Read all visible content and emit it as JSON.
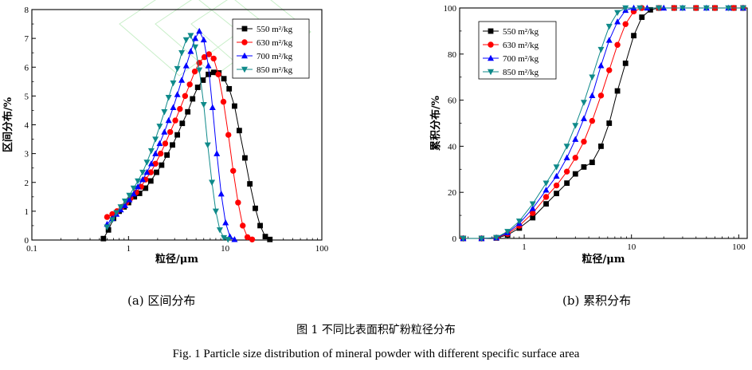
{
  "figure": {
    "caption_zh": "图 1  不同比表面积矿粉粒径分布",
    "caption_en": "Fig. 1 Particle size distribution of mineral powder with different specific surface area"
  },
  "chart_data": [
    {
      "id": "a",
      "type": "line",
      "caption": "(a)  区间分布",
      "xlabel": "粒径/μm",
      "ylabel": "区间分布/%",
      "xscale": "log",
      "xlim": [
        0.1,
        100
      ],
      "ylim": [
        0,
        8
      ],
      "xticks": [
        0.1,
        1,
        10,
        100
      ],
      "xtick_labels": [
        "0.1",
        "1",
        "10",
        "100"
      ],
      "yticks": [
        0,
        1,
        2,
        3,
        4,
        5,
        6,
        7,
        8
      ],
      "ytick_labels": [
        "0",
        "1",
        "2",
        "3",
        "4",
        "5",
        "6",
        "7",
        "8"
      ],
      "grid": false,
      "legend_position": "top-right",
      "series": [
        {
          "name": "550 m²/kg",
          "marker": "square",
          "color": "#000000",
          "peak_x": 7.8,
          "peak_y": 5.85,
          "left_sigma": 0.41,
          "right_sigma": 0.2,
          "onset_x": 0.55,
          "end_x": 27,
          "points": [
            [
              0.55,
              0.05
            ],
            [
              0.62,
              0.35
            ],
            [
              0.7,
              0.75
            ],
            [
              0.8,
              1.0
            ],
            [
              0.9,
              1.15
            ],
            [
              1.0,
              1.3
            ],
            [
              1.15,
              1.5
            ],
            [
              1.3,
              1.62
            ],
            [
              1.5,
              1.8
            ],
            [
              1.7,
              2.05
            ],
            [
              1.95,
              2.35
            ],
            [
              2.2,
              2.6
            ],
            [
              2.5,
              2.95
            ],
            [
              2.85,
              3.3
            ],
            [
              3.2,
              3.65
            ],
            [
              3.6,
              4.05
            ],
            [
              4.1,
              4.45
            ],
            [
              4.6,
              4.9
            ],
            [
              5.2,
              5.3
            ],
            [
              5.9,
              5.55
            ],
            [
              6.7,
              5.75
            ],
            [
              7.6,
              5.82
            ],
            [
              8.6,
              5.8
            ],
            [
              9.7,
              5.6
            ],
            [
              11,
              5.25
            ],
            [
              12.5,
              4.65
            ],
            [
              14,
              3.8
            ],
            [
              16,
              2.85
            ],
            [
              18,
              1.95
            ],
            [
              20.5,
              1.1
            ],
            [
              23,
              0.5
            ],
            [
              26,
              0.12
            ],
            [
              29,
              0.02
            ]
          ]
        },
        {
          "name": "630 m²/kg",
          "marker": "circle",
          "color": "#ff0000",
          "peak_x": 6.6,
          "peak_y": 6.45,
          "left_sigma": 0.42,
          "right_sigma": 0.17,
          "onset_x": 0.55,
          "end_x": 20,
          "points": [
            [
              0.6,
              0.8
            ],
            [
              0.68,
              0.9
            ],
            [
              0.76,
              1.0
            ],
            [
              0.85,
              1.15
            ],
            [
              0.95,
              1.3
            ],
            [
              1.05,
              1.45
            ],
            [
              1.2,
              1.65
            ],
            [
              1.35,
              1.85
            ],
            [
              1.5,
              2.1
            ],
            [
              1.7,
              2.35
            ],
            [
              1.9,
              2.65
            ],
            [
              2.15,
              3.0
            ],
            [
              2.4,
              3.35
            ],
            [
              2.7,
              3.75
            ],
            [
              3.05,
              4.15
            ],
            [
              3.4,
              4.55
            ],
            [
              3.85,
              5.0
            ],
            [
              4.3,
              5.4
            ],
            [
              4.85,
              5.85
            ],
            [
              5.4,
              6.15
            ],
            [
              6.1,
              6.35
            ],
            [
              6.8,
              6.45
            ],
            [
              7.6,
              6.3
            ],
            [
              8.5,
              5.75
            ],
            [
              9.6,
              4.8
            ],
            [
              10.8,
              3.65
            ],
            [
              12.1,
              2.4
            ],
            [
              13.6,
              1.3
            ],
            [
              15.2,
              0.5
            ],
            [
              17,
              0.1
            ],
            [
              19,
              0.02
            ]
          ]
        },
        {
          "name": "700 m²/kg",
          "marker": "triangle-up",
          "color": "#0000ff",
          "peak_x": 5.5,
          "peak_y": 7.3,
          "left_sigma": 0.44,
          "right_sigma": 0.13,
          "onset_x": 0.55,
          "end_x": 14,
          "points": [
            [
              0.6,
              0.55
            ],
            [
              0.68,
              0.75
            ],
            [
              0.75,
              0.9
            ],
            [
              0.83,
              1.05
            ],
            [
              0.92,
              1.2
            ],
            [
              1.02,
              1.4
            ],
            [
              1.13,
              1.6
            ],
            [
              1.25,
              1.85
            ],
            [
              1.4,
              2.1
            ],
            [
              1.55,
              2.35
            ],
            [
              1.72,
              2.65
            ],
            [
              1.9,
              3.0
            ],
            [
              2.1,
              3.35
            ],
            [
              2.35,
              3.75
            ],
            [
              2.6,
              4.15
            ],
            [
              2.9,
              4.6
            ],
            [
              3.2,
              5.05
            ],
            [
              3.55,
              5.55
            ],
            [
              3.95,
              6.05
            ],
            [
              4.4,
              6.55
            ],
            [
              4.9,
              7.0
            ],
            [
              5.4,
              7.25
            ],
            [
              6.0,
              6.95
            ],
            [
              6.7,
              6.05
            ],
            [
              7.4,
              4.6
            ],
            [
              8.2,
              3.0
            ],
            [
              9.1,
              1.6
            ],
            [
              10.1,
              0.6
            ],
            [
              11.2,
              0.12
            ],
            [
              12.5,
              0.02
            ]
          ]
        },
        {
          "name": "850 m²/kg",
          "marker": "triangle-down",
          "color": "#0f8a8a",
          "peak_x": 4.6,
          "peak_y": 7.1,
          "left_sigma": 0.42,
          "right_sigma": 0.12,
          "onset_x": 0.55,
          "end_x": 12,
          "points": [
            [
              0.6,
              0.45
            ],
            [
              0.68,
              0.7
            ],
            [
              0.75,
              0.95
            ],
            [
              0.83,
              1.15
            ],
            [
              0.92,
              1.35
            ],
            [
              1.02,
              1.55
            ],
            [
              1.13,
              1.8
            ],
            [
              1.25,
              2.05
            ],
            [
              1.4,
              2.35
            ],
            [
              1.55,
              2.7
            ],
            [
              1.72,
              3.1
            ],
            [
              1.9,
              3.5
            ],
            [
              2.1,
              3.95
            ],
            [
              2.35,
              4.45
            ],
            [
              2.6,
              4.95
            ],
            [
              2.9,
              5.45
            ],
            [
              3.2,
              5.95
            ],
            [
              3.55,
              6.5
            ],
            [
              3.95,
              6.95
            ],
            [
              4.4,
              7.1
            ],
            [
              4.9,
              6.7
            ],
            [
              5.4,
              5.9
            ],
            [
              6.0,
              4.7
            ],
            [
              6.6,
              3.3
            ],
            [
              7.3,
              2.0
            ],
            [
              8.0,
              1.0
            ],
            [
              8.8,
              0.35
            ],
            [
              9.7,
              0.08
            ],
            [
              10.7,
              0.02
            ]
          ]
        }
      ]
    },
    {
      "id": "b",
      "type": "line",
      "caption": "(b)  累积分布",
      "xlabel": "粒径/μm",
      "ylabel": "累积分布/%",
      "xscale": "log",
      "xlim": [
        0.25,
        120
      ],
      "ylim": [
        0,
        100
      ],
      "xticks": [
        1,
        10,
        100
      ],
      "xtick_labels": [
        "1",
        "10",
        "100"
      ],
      "yticks": [
        0,
        20,
        40,
        60,
        80,
        100
      ],
      "ytick_labels": [
        "0",
        "20",
        "40",
        "60",
        "80",
        "100"
      ],
      "grid": false,
      "legend_position": "top-left",
      "series": [
        {
          "name": "550 m²/kg",
          "marker": "square",
          "color": "#000000",
          "points": [
            [
              0.27,
              0
            ],
            [
              0.4,
              0
            ],
            [
              0.55,
              0.2
            ],
            [
              0.7,
              1.5
            ],
            [
              0.9,
              4.5
            ],
            [
              1.2,
              9
            ],
            [
              1.6,
              15
            ],
            [
              2.0,
              19.5
            ],
            [
              2.5,
              24
            ],
            [
              3.0,
              28
            ],
            [
              3.6,
              31
            ],
            [
              4.3,
              33
            ],
            [
              5.2,
              40
            ],
            [
              6.2,
              50
            ],
            [
              7.4,
              64
            ],
            [
              8.8,
              76
            ],
            [
              10.5,
              88
            ],
            [
              12.5,
              96
            ],
            [
              15,
              99.2
            ],
            [
              18,
              100
            ],
            [
              25,
              100
            ],
            [
              40,
              100
            ],
            [
              60,
              100
            ],
            [
              90,
              100
            ],
            [
              110,
              100
            ]
          ]
        },
        {
          "name": "630 m²/kg",
          "marker": "circle",
          "color": "#ff0000",
          "points": [
            [
              0.27,
              0
            ],
            [
              0.4,
              0
            ],
            [
              0.55,
              0.3
            ],
            [
              0.7,
              2.0
            ],
            [
              0.9,
              5.5
            ],
            [
              1.2,
              11
            ],
            [
              1.6,
              18
            ],
            [
              2.0,
              23
            ],
            [
              2.5,
              29
            ],
            [
              3.0,
              35
            ],
            [
              3.6,
              42
            ],
            [
              4.3,
              51
            ],
            [
              5.2,
              62
            ],
            [
              6.2,
              73
            ],
            [
              7.4,
              84
            ],
            [
              8.8,
              93
            ],
            [
              10.5,
              98.5
            ],
            [
              12.5,
              100
            ],
            [
              18,
              100
            ],
            [
              25,
              100
            ],
            [
              40,
              100
            ],
            [
              60,
              100
            ],
            [
              90,
              100
            ],
            [
              110,
              100
            ]
          ]
        },
        {
          "name": "700 m²/kg",
          "marker": "triangle-up",
          "color": "#0000ff",
          "points": [
            [
              0.27,
              0
            ],
            [
              0.4,
              0
            ],
            [
              0.55,
              0.3
            ],
            [
              0.7,
              2.5
            ],
            [
              0.9,
              6.5
            ],
            [
              1.2,
              13
            ],
            [
              1.6,
              21
            ],
            [
              2.0,
              27
            ],
            [
              2.5,
              35
            ],
            [
              3.0,
              43
            ],
            [
              3.6,
              52
            ],
            [
              4.3,
              62
            ],
            [
              5.2,
              75
            ],
            [
              6.2,
              86
            ],
            [
              7.4,
              94
            ],
            [
              8.8,
              99
            ],
            [
              10.5,
              100
            ],
            [
              14,
              100
            ],
            [
              20,
              100
            ],
            [
              30,
              100
            ],
            [
              50,
              100
            ],
            [
              80,
              100
            ],
            [
              110,
              100
            ]
          ]
        },
        {
          "name": "850 m²/kg",
          "marker": "triangle-down",
          "color": "#0f8a8a",
          "points": [
            [
              0.27,
              0
            ],
            [
              0.4,
              0
            ],
            [
              0.55,
              0.4
            ],
            [
              0.7,
              3
            ],
            [
              0.9,
              7.5
            ],
            [
              1.2,
              15
            ],
            [
              1.6,
              24
            ],
            [
              2.0,
              31
            ],
            [
              2.5,
              40
            ],
            [
              3.0,
              49
            ],
            [
              3.6,
              59
            ],
            [
              4.3,
              70
            ],
            [
              5.2,
              82
            ],
            [
              6.2,
              92
            ],
            [
              7.4,
              98
            ],
            [
              8.8,
              100
            ],
            [
              12,
              100
            ],
            [
              18,
              100
            ],
            [
              30,
              100
            ],
            [
              50,
              100
            ],
            [
              80,
              100
            ],
            [
              110,
              100
            ]
          ]
        }
      ]
    }
  ]
}
